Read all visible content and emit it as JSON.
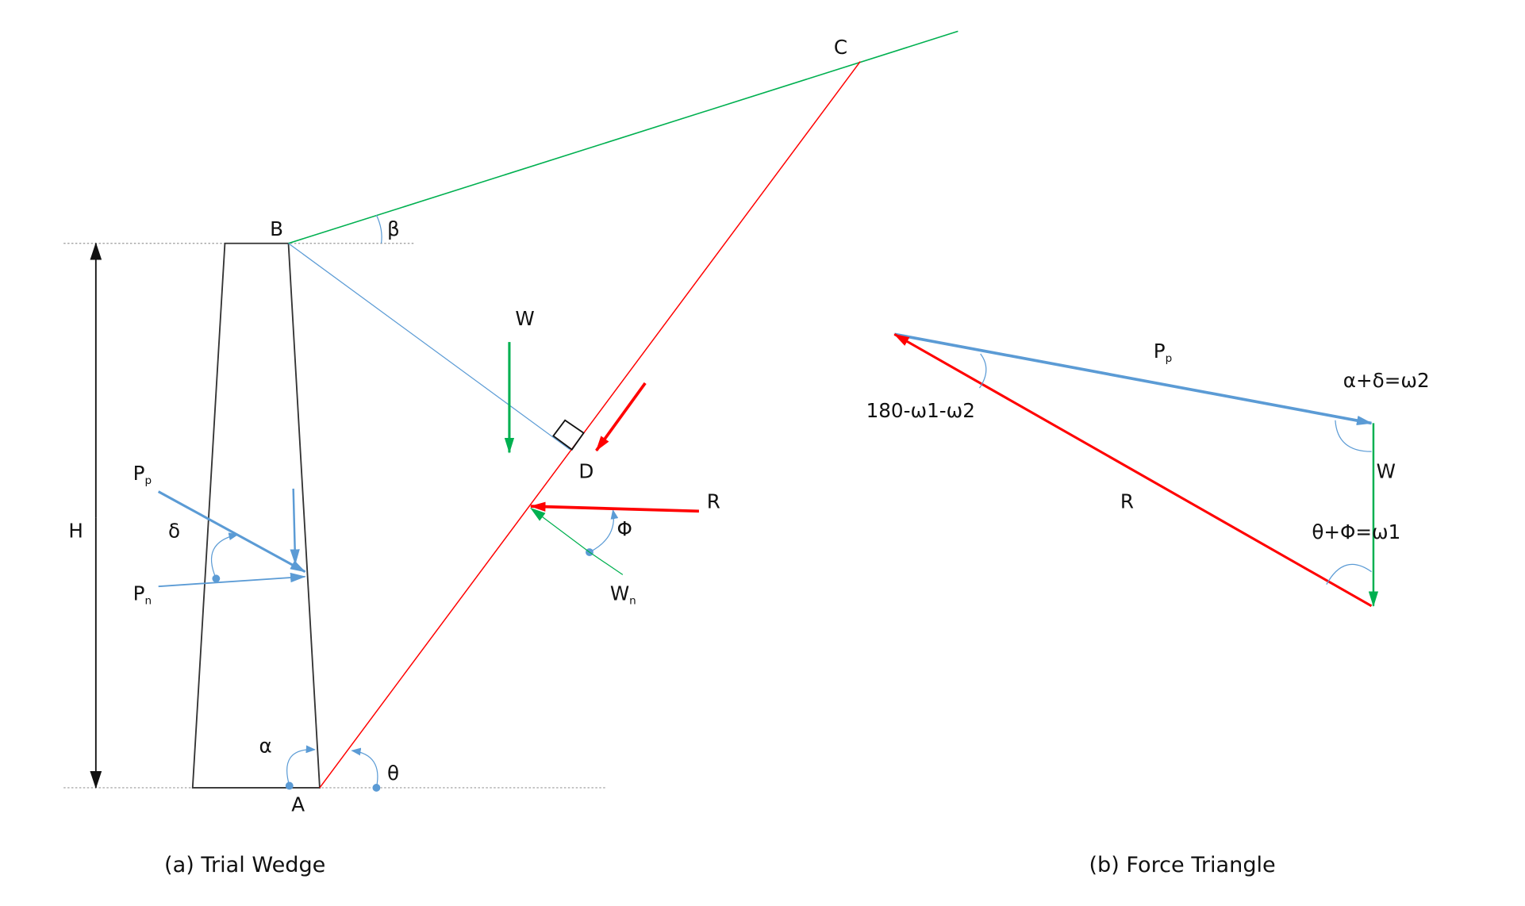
{
  "colors": {
    "wall": "#222222",
    "backfill": "#00b050",
    "failure_plane": "#ff0000",
    "force_blue": "#5b9bd5",
    "weight": "#00b050",
    "resultant": "#ff0000",
    "guide": "#a0a0a0"
  },
  "wedge": {
    "points": {
      "A": "A",
      "B": "B",
      "C": "C",
      "D": "D"
    },
    "height": "H",
    "angles": {
      "beta": "β",
      "alpha": "α",
      "theta": "θ",
      "delta": "δ",
      "phi": "Φ"
    },
    "forces": {
      "W": "W",
      "R": "R",
      "Pp_main": "P",
      "Pp_sub": "p",
      "Pn_main": "P",
      "Pn_sub": "n",
      "Wn_main": "W",
      "Wn_sub": "n"
    },
    "caption": "(a) Trial Wedge"
  },
  "triangle": {
    "Pp_main": "P",
    "Pp_sub": "p",
    "W": "W",
    "R": "R",
    "angle_top": "180-ω1-ω2",
    "angle_right": "α+δ=ω2",
    "angle_bottom": "θ+Φ=ω1",
    "caption": "(b) Force Triangle"
  }
}
